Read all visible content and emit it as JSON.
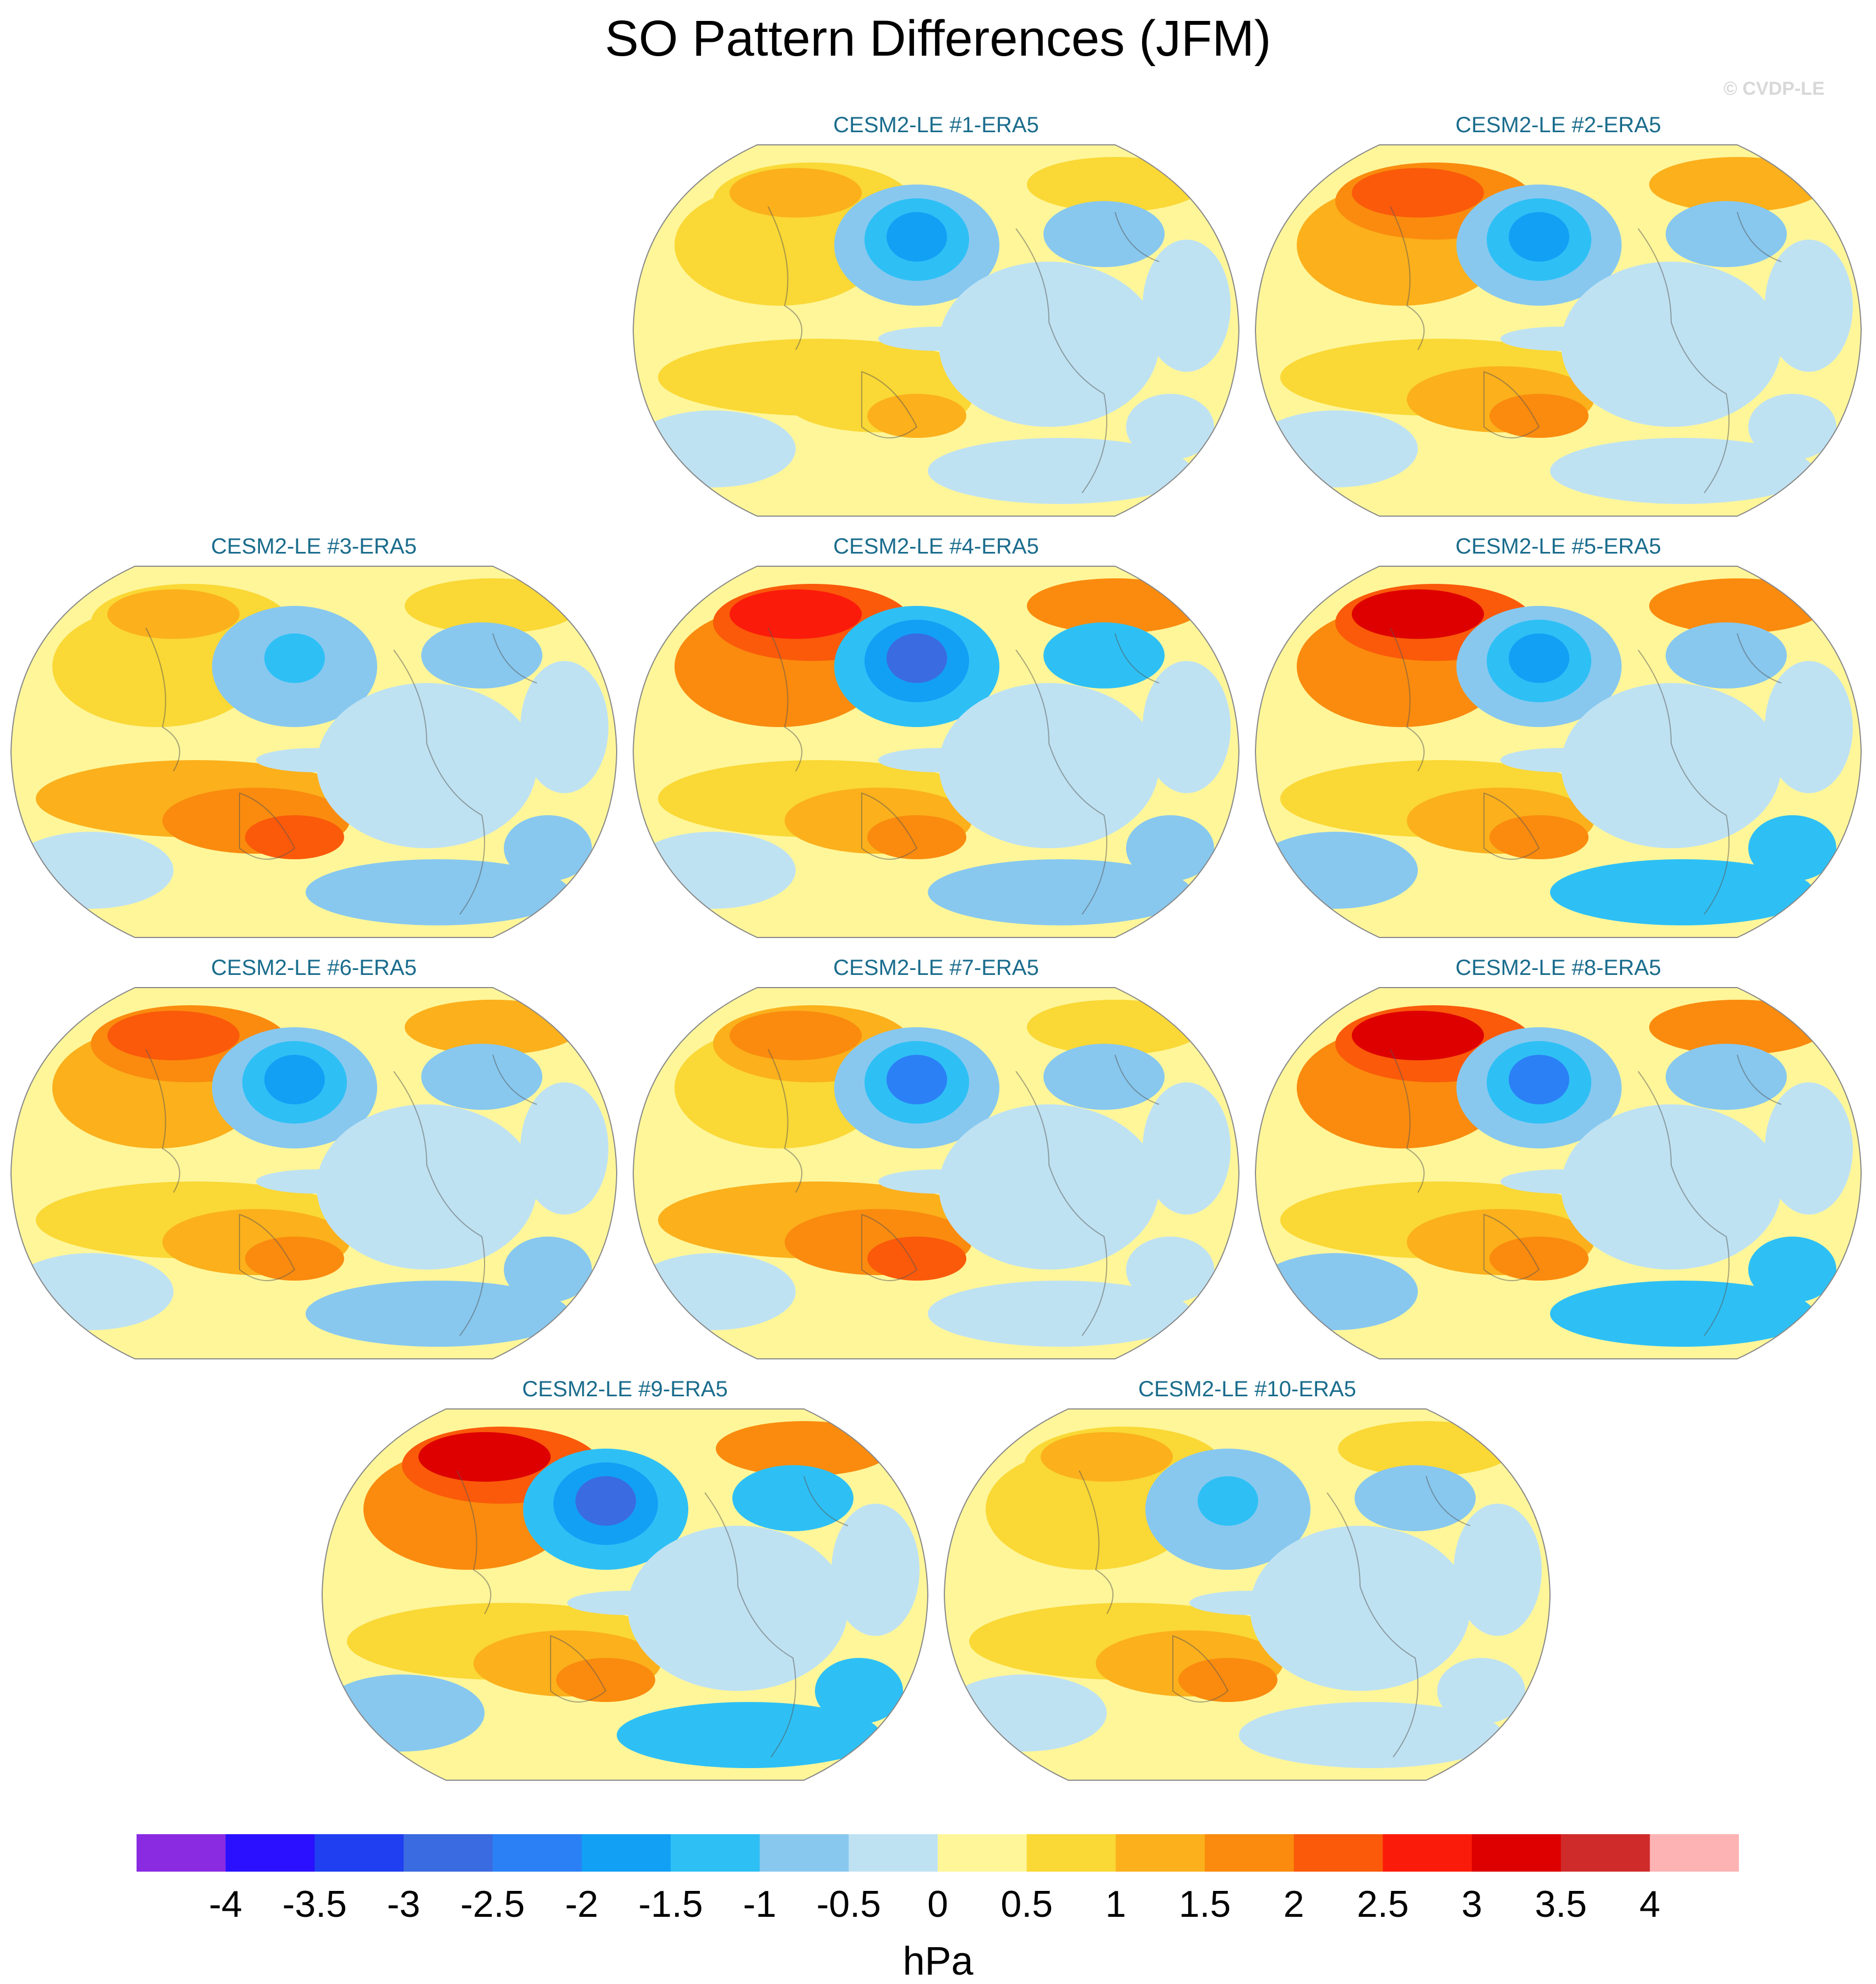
{
  "title": "SO Pattern Differences (JFM)",
  "watermark": "© CVDP-LE",
  "chart_data": {
    "type": "heatmap",
    "projection": "global map (Winkel-Tripel style)",
    "variable": "sea level pressure pattern difference",
    "units": "hPa",
    "colorbar": {
      "levels": [
        -4,
        -3.5,
        -3,
        -2.5,
        -2,
        -1.5,
        -1,
        -0.5,
        0,
        0.5,
        1,
        1.5,
        2,
        2.5,
        3,
        3.5,
        4
      ],
      "labels": [
        "-4",
        "-3.5",
        "-3",
        "-2.5",
        "-2",
        "-1.5",
        "-1",
        "-0.5",
        "0",
        "0.5",
        "1",
        "1.5",
        "2",
        "2.5",
        "3",
        "3.5",
        "4"
      ],
      "colors": [
        "#8a2be2",
        "#2a10ff",
        "#1f3ff0",
        "#3a6be0",
        "#2b80f5",
        "#12a0f5",
        "#2ec0f5",
        "#88c8ef",
        "#bfe2f2",
        "#fff69a",
        "#fad835",
        "#fbb01c",
        "#fa8b0e",
        "#fa5a0a",
        "#fb1b0b",
        "#de0000",
        "#cf2b2b",
        "#fdb3b3"
      ]
    },
    "panels": [
      {
        "title": "CESM2-LE #1-ERA5",
        "npac_low": -2.0,
        "nh_high": 1.0,
        "spac_high": 1.0,
        "so_low": -0.5
      },
      {
        "title": "CESM2-LE #2-ERA5",
        "npac_low": -2.0,
        "nh_high": 2.0,
        "spac_high": 1.5,
        "so_low": -0.5
      },
      {
        "title": "CESM2-LE #3-ERA5",
        "npac_low": -1.5,
        "nh_high": 1.0,
        "spac_high": 2.0,
        "so_low": -1.0
      },
      {
        "title": "CESM2-LE #4-ERA5",
        "npac_low": -3.0,
        "nh_high": 2.5,
        "spac_high": 1.5,
        "so_low": -1.0
      },
      {
        "title": "CESM2-LE #5-ERA5",
        "npac_low": -2.0,
        "nh_high": 3.0,
        "spac_high": 1.5,
        "so_low": -1.5
      },
      {
        "title": "CESM2-LE #6-ERA5",
        "npac_low": -2.0,
        "nh_high": 2.0,
        "spac_high": 1.5,
        "so_low": -1.0
      },
      {
        "title": "CESM2-LE #7-ERA5",
        "npac_low": -2.5,
        "nh_high": 1.5,
        "spac_high": 2.0,
        "so_low": -0.5
      },
      {
        "title": "CESM2-LE #8-ERA5",
        "npac_low": -2.5,
        "nh_high": 3.0,
        "spac_high": 1.5,
        "so_low": -1.5
      },
      {
        "title": "CESM2-LE #9-ERA5",
        "npac_low": -3.0,
        "nh_high": 3.0,
        "spac_high": 1.5,
        "so_low": -1.5
      },
      {
        "title": "CESM2-LE #10-ERA5",
        "npac_low": -1.5,
        "nh_high": 1.0,
        "spac_high": 1.5,
        "so_low": -0.5
      }
    ]
  }
}
